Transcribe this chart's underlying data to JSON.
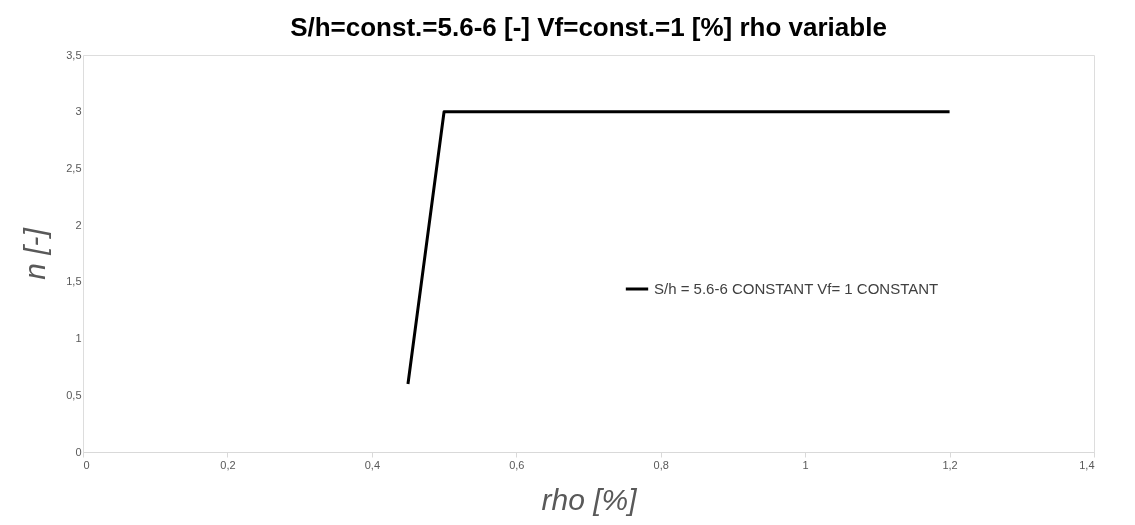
{
  "chart_data": {
    "type": "line",
    "title": "S/h=const.=5.6-6 [-]   Vf=const.=1 [%]   rho variable",
    "xlabel": "rho [%]",
    "ylabel": "n [-]",
    "series": [
      {
        "name": "S/h = 5.6-6 CONSTANT Vf= 1 CONSTANT",
        "color": "#000000",
        "x": [
          0.45,
          0.5,
          1.2
        ],
        "values": [
          0.6,
          3,
          3
        ]
      }
    ],
    "xlim": [
      0,
      1.4
    ],
    "xticks": [
      0,
      {
        "value": 0.2,
        "label": "0,2"
      },
      {
        "value": 0.4,
        "label": "0,4"
      },
      {
        "value": 0.6,
        "label": "0,6"
      },
      {
        "value": 0.8,
        "label": "0,8"
      },
      1,
      {
        "value": 1.2,
        "label": "1,2"
      },
      {
        "value": 1.4,
        "label": "1,4"
      }
    ],
    "ylim": [
      0,
      3.5
    ],
    "yticks": [
      0,
      {
        "value": 0.5,
        "label": "0,5"
      },
      1,
      {
        "value": 1.5,
        "label": "1,5"
      },
      2,
      {
        "value": 2.5,
        "label": "2,5"
      },
      3,
      {
        "value": 3.5,
        "label": "3,5"
      }
    ],
    "legend": "bottom right",
    "grid": false,
    "marker": "none",
    "line_style": "solid"
  }
}
